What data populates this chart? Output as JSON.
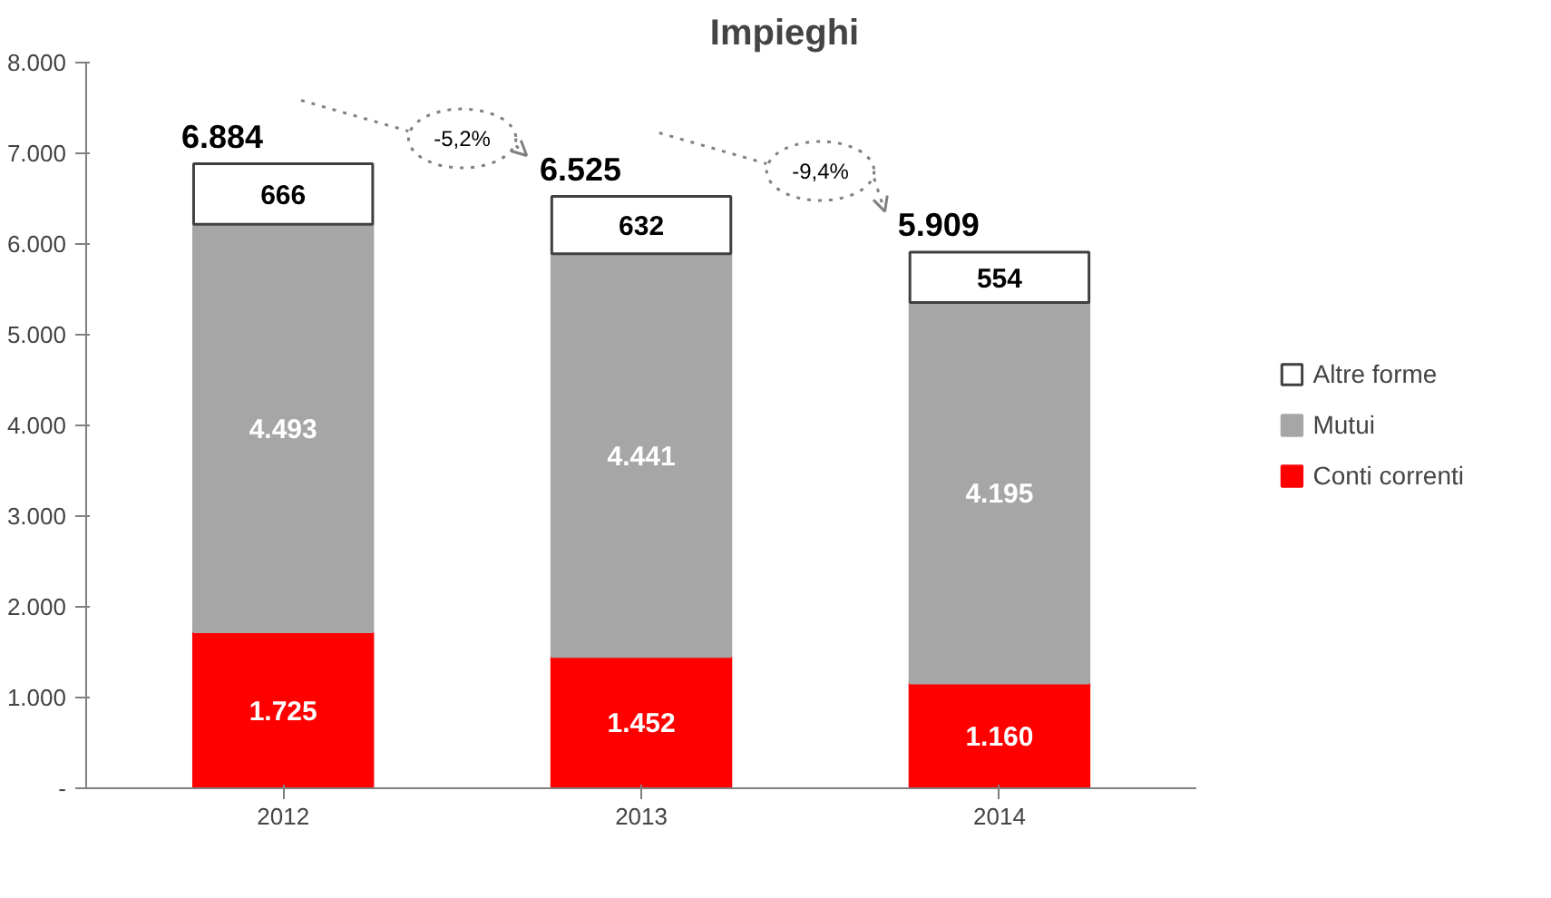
{
  "chart_data": {
    "type": "bar",
    "title": "Impieghi",
    "stacked": true,
    "categories": [
      "2012",
      "2013",
      "2014"
    ],
    "series": [
      {
        "name": "Conti correnti",
        "color": "#ff0000",
        "values": [
          1725,
          1452,
          1160
        ],
        "value_labels": [
          "1.725",
          "1.452",
          "1.160"
        ]
      },
      {
        "name": "Mutui",
        "color": "#a6a6a6",
        "values": [
          4493,
          4441,
          4195
        ],
        "value_labels": [
          "4.493",
          "4.441",
          "4.195"
        ]
      },
      {
        "name": "Altre forme",
        "color": "#ffffff",
        "values": [
          666,
          632,
          554
        ],
        "value_labels": [
          "666",
          "632",
          "554"
        ]
      }
    ],
    "totals": [
      "6.884",
      "6.525",
      "5.909"
    ],
    "annotations": [
      "-5,2%",
      "-9,4%"
    ],
    "ylim": [
      0,
      8000
    ],
    "yticks": [
      {
        "value": 0,
        "label": "-"
      },
      {
        "value": 1000,
        "label": "1.000"
      },
      {
        "value": 2000,
        "label": "2.000"
      },
      {
        "value": 3000,
        "label": "3.000"
      },
      {
        "value": 4000,
        "label": "4.000"
      },
      {
        "value": 5000,
        "label": "5.000"
      },
      {
        "value": 6000,
        "label": "6.000"
      },
      {
        "value": 7000,
        "label": "7.000"
      },
      {
        "value": 8000,
        "label": "8.000"
      }
    ],
    "grid": false,
    "legend": "right"
  }
}
